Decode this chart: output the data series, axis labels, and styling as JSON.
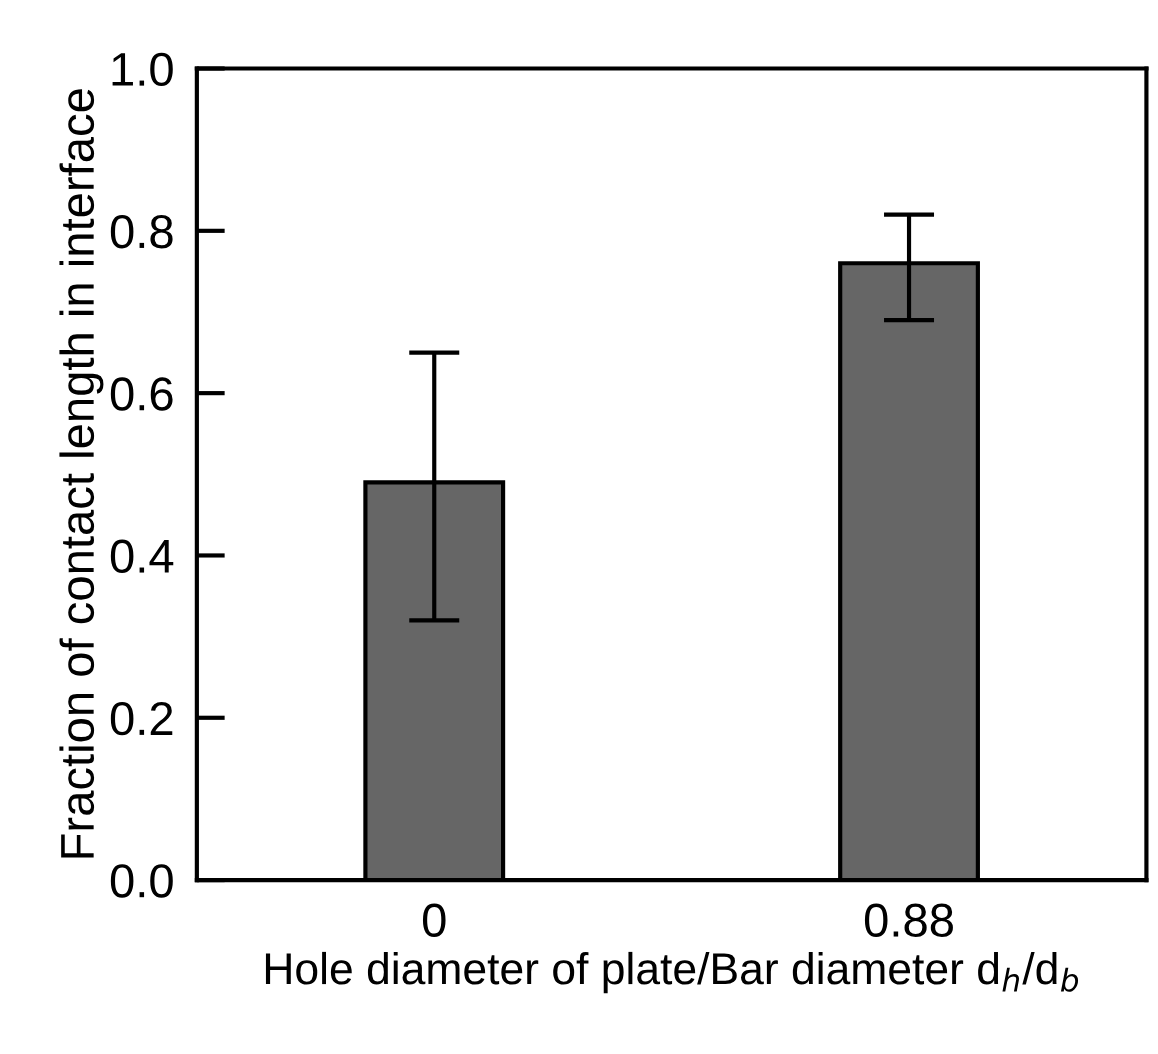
{
  "chart_data": {
    "type": "bar",
    "xlabel": "Hole diameter of plate/Bar diameter d$_{h}$/d$_{b}$",
    "ylabel": "Fraction of contact length in interface",
    "categories": [
      "0",
      "0.88"
    ],
    "values": [
      0.49,
      0.76
    ],
    "errors": [
      [
        0.32,
        0.65
      ],
      [
        0.69,
        0.82
      ]
    ],
    "color": "#666666",
    "ylim": [
      0.0,
      1.0
    ],
    "yticks": [
      {
        "value": 0.0,
        "label": "0.0"
      },
      {
        "value": 0.2,
        "label": "0.2"
      },
      {
        "value": 0.4,
        "label": "0.4"
      },
      {
        "value": 0.6,
        "label": "0.6"
      },
      {
        "value": 0.8,
        "label": "0.8"
      },
      {
        "value": 1.0,
        "label": "1.0"
      }
    ],
    "grid": false,
    "legend": false
  }
}
